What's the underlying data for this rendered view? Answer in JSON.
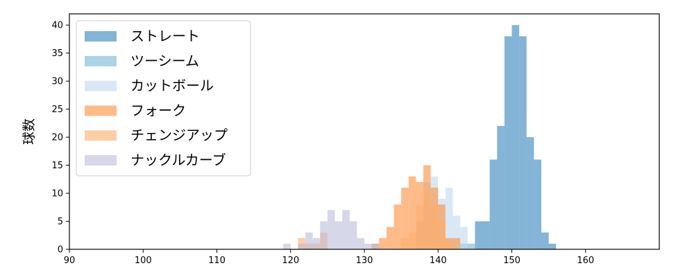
{
  "chart_data": {
    "type": "bar",
    "xlabel": "",
    "ylabel": "球数",
    "xlim": [
      90,
      170
    ],
    "ylim": [
      0,
      42
    ],
    "x_ticks": [
      90,
      100,
      110,
      120,
      130,
      140,
      150,
      160
    ],
    "y_ticks": [
      0,
      5,
      10,
      15,
      20,
      25,
      30,
      35,
      40
    ],
    "grid": false,
    "legend_position": "top-left",
    "series": [
      {
        "name": "ストレート",
        "color": "#1f77b4",
        "opacity": 0.55,
        "bins": [
          {
            "x0": 143,
            "x1": 144,
            "count": 1
          },
          {
            "x0": 145,
            "x1": 147,
            "count": 5
          },
          {
            "x0": 147,
            "x1": 148,
            "count": 16
          },
          {
            "x0": 148,
            "x1": 149,
            "count": 22
          },
          {
            "x0": 149,
            "x1": 150,
            "count": 38
          },
          {
            "x0": 150,
            "x1": 151,
            "count": 40
          },
          {
            "x0": 151,
            "x1": 152,
            "count": 38
          },
          {
            "x0": 152,
            "x1": 153,
            "count": 20
          },
          {
            "x0": 153,
            "x1": 154,
            "count": 16
          },
          {
            "x0": 154,
            "x1": 155,
            "count": 3
          },
          {
            "x0": 155,
            "x1": 156,
            "count": 1
          }
        ]
      },
      {
        "name": "ツーシーム",
        "color": "#9ecae1",
        "opacity": 0.85,
        "bins": [
          {
            "x0": 143,
            "x1": 145,
            "count": 1
          }
        ]
      },
      {
        "name": "カットボール",
        "color": "#c6dbef",
        "opacity": 0.65,
        "bins": [
          {
            "x0": 137,
            "x1": 138,
            "count": 5
          },
          {
            "x0": 138,
            "x1": 139,
            "count": 12
          },
          {
            "x0": 139,
            "x1": 140,
            "count": 13
          },
          {
            "x0": 140,
            "x1": 141,
            "count": 9
          },
          {
            "x0": 141,
            "x1": 142,
            "count": 11
          },
          {
            "x0": 142,
            "x1": 143,
            "count": 6
          },
          {
            "x0": 143,
            "x1": 144,
            "count": 4
          }
        ]
      },
      {
        "name": "フォーク",
        "color": "#fd8d3c",
        "opacity": 0.6,
        "bins": [
          {
            "x0": 131,
            "x1": 132,
            "count": 1
          },
          {
            "x0": 132,
            "x1": 133,
            "count": 2
          },
          {
            "x0": 133,
            "x1": 134,
            "count": 4
          },
          {
            "x0": 134,
            "x1": 135,
            "count": 8
          },
          {
            "x0": 135,
            "x1": 136,
            "count": 11
          },
          {
            "x0": 136,
            "x1": 137,
            "count": 13
          },
          {
            "x0": 137,
            "x1": 138,
            "count": 12
          },
          {
            "x0": 138,
            "x1": 139,
            "count": 15
          },
          {
            "x0": 139,
            "x1": 140,
            "count": 11
          },
          {
            "x0": 140,
            "x1": 141,
            "count": 8
          },
          {
            "x0": 141,
            "x1": 142,
            "count": 2
          },
          {
            "x0": 142,
            "x1": 143,
            "count": 2
          }
        ]
      },
      {
        "name": "チェンジアップ",
        "color": "#fdae6b",
        "opacity": 0.6,
        "bins": [
          {
            "x0": 121,
            "x1": 122,
            "count": 2
          },
          {
            "x0": 122,
            "x1": 123,
            "count": 1
          },
          {
            "x0": 123,
            "x1": 124,
            "count": 1
          },
          {
            "x0": 124,
            "x1": 125,
            "count": 3
          },
          {
            "x0": 131,
            "x1": 132,
            "count": 1
          },
          {
            "x0": 135,
            "x1": 136,
            "count": 2
          },
          {
            "x0": 136,
            "x1": 137,
            "count": 3
          },
          {
            "x0": 137,
            "x1": 138,
            "count": 8
          },
          {
            "x0": 138,
            "x1": 139,
            "count": 10
          },
          {
            "x0": 139,
            "x1": 140,
            "count": 8
          },
          {
            "x0": 140,
            "x1": 141,
            "count": 5
          },
          {
            "x0": 141,
            "x1": 142,
            "count": 1
          }
        ]
      },
      {
        "name": "ナックルカーブ",
        "color": "#bcbddc",
        "opacity": 0.6,
        "bins": [
          {
            "x0": 119,
            "x1": 120,
            "count": 1
          },
          {
            "x0": 121,
            "x1": 122,
            "count": 1
          },
          {
            "x0": 122,
            "x1": 123,
            "count": 3
          },
          {
            "x0": 123,
            "x1": 124,
            "count": 2
          },
          {
            "x0": 124,
            "x1": 125,
            "count": 5
          },
          {
            "x0": 125,
            "x1": 126,
            "count": 7
          },
          {
            "x0": 126,
            "x1": 127,
            "count": 5
          },
          {
            "x0": 127,
            "x1": 128,
            "count": 7
          },
          {
            "x0": 128,
            "x1": 129,
            "count": 5
          },
          {
            "x0": 129,
            "x1": 130,
            "count": 2
          },
          {
            "x0": 130,
            "x1": 131,
            "count": 1
          },
          {
            "x0": 131,
            "x1": 132,
            "count": 1
          }
        ]
      }
    ]
  }
}
